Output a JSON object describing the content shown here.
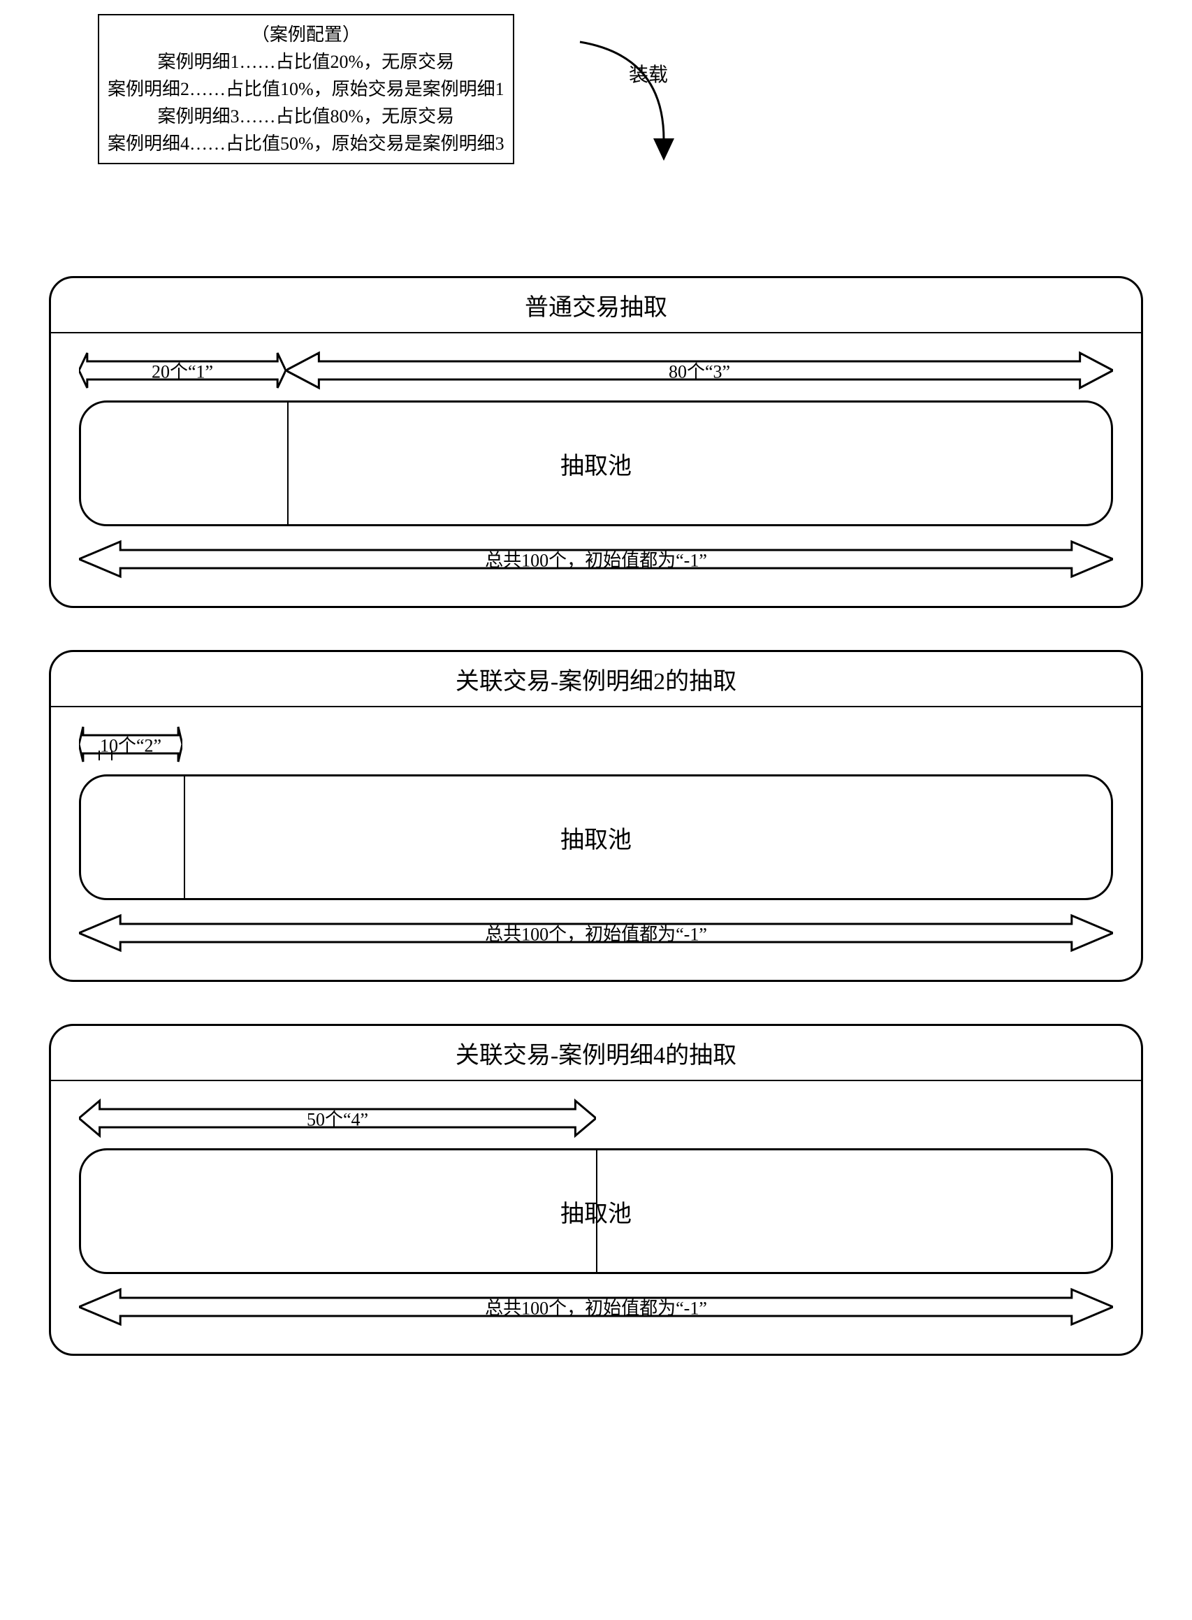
{
  "config": {
    "title": "（案例配置）",
    "lines": [
      "案例明细1……占比值20%，无原交易",
      "案例明细2……占比值10%，原始交易是案例明细1",
      "案例明细3……占比值80%，无原交易",
      "案例明细4……占比值50%，原始交易是案例明细3"
    ]
  },
  "load_label": "装载",
  "sections": [
    {
      "title": "普通交易抽取",
      "top_arrows": [
        {
          "label": "20个“1”",
          "left_pct": 0,
          "width_pct": 20
        },
        {
          "label": "80个“3”",
          "left_pct": 20,
          "width_pct": 80
        }
      ],
      "pool_label": "抽取池",
      "dividers_pct": [
        20
      ],
      "bottom_label": "总共100个，初始值都为“-1”",
      "connector": null
    },
    {
      "title": "关联交易-案例明细2的抽取",
      "top_arrows": [
        {
          "label": "10个“2”",
          "left_pct": 0,
          "width_pct": 10
        }
      ],
      "pool_label": "抽取池",
      "dividers_pct": [
        10
      ],
      "bottom_label": "总共100个，初始值都为“-1”",
      "connector": {
        "left_pct": 5
      }
    },
    {
      "title": "关联交易-案例明细4的抽取",
      "top_arrows": [
        {
          "label": "50个“4”",
          "left_pct": 0,
          "width_pct": 50
        }
      ],
      "pool_label": "抽取池",
      "dividers_pct": [
        50
      ],
      "bottom_label": "总共100个，初始值都为“-1”",
      "connector": null
    }
  ],
  "colors": {
    "stroke": "#000000",
    "bg": "#ffffff"
  }
}
